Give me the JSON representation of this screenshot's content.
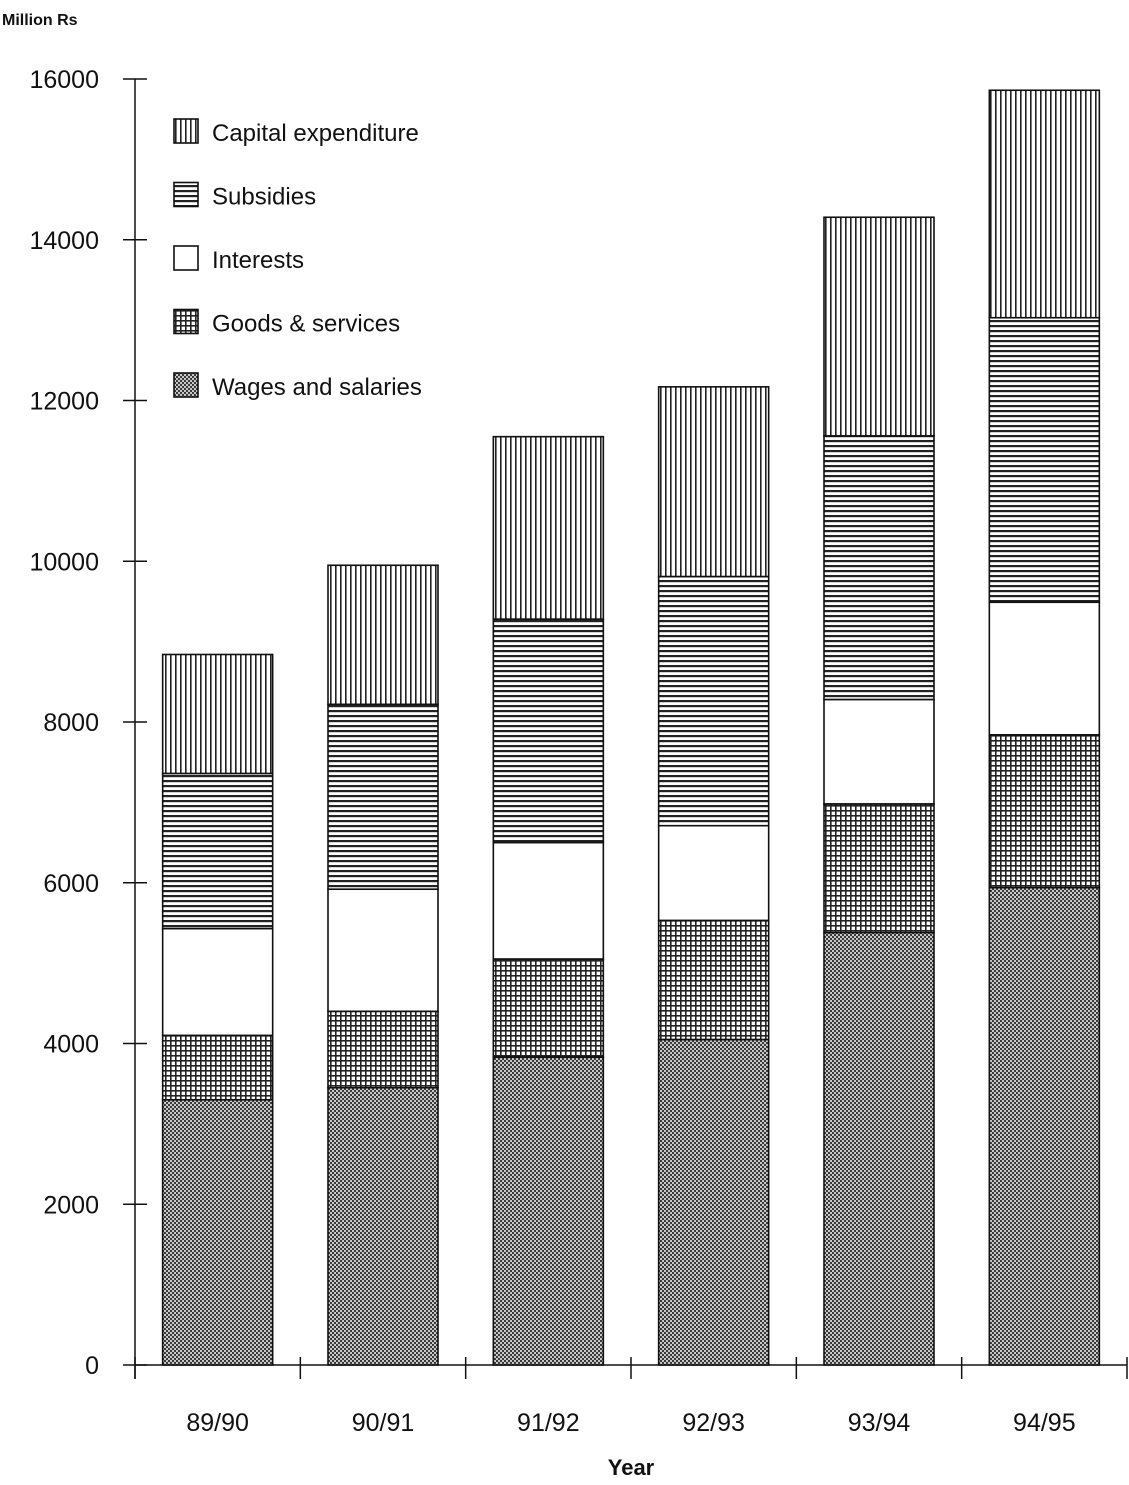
{
  "chart_data": {
    "type": "bar",
    "stacked": true,
    "ylabel": "Million Rs",
    "xlabel": "Year",
    "ylim": [
      0,
      16000
    ],
    "yticks": [
      0,
      2000,
      4000,
      6000,
      8000,
      10000,
      12000,
      14000,
      16000
    ],
    "categories": [
      "89/90",
      "90/91",
      "91/92",
      "92/93",
      "93/94",
      "94/95"
    ],
    "legend_position": "top-left",
    "legend_order": [
      "Capital expenditure",
      "Subsidies",
      "Interests",
      "Goods & services",
      "Wages and salaries"
    ],
    "series": [
      {
        "name": "Wages and salaries",
        "pattern": "crosshatch-dense",
        "values": [
          3300,
          3450,
          3830,
          4050,
          5380,
          5940
        ]
      },
      {
        "name": "Goods & services",
        "pattern": "grid",
        "values": [
          800,
          950,
          1220,
          1480,
          1600,
          1900
        ]
      },
      {
        "name": "Interests",
        "pattern": "white",
        "values": [
          1330,
          1520,
          1450,
          1180,
          1300,
          1650
        ]
      },
      {
        "name": "Subsidies",
        "pattern": "horizontal-lines",
        "values": [
          1930,
          2300,
          2780,
          3100,
          3280,
          3540
        ]
      },
      {
        "name": "Capital expenditure",
        "pattern": "vertical-lines",
        "values": [
          1480,
          1730,
          2270,
          2360,
          2720,
          2830
        ]
      }
    ]
  }
}
